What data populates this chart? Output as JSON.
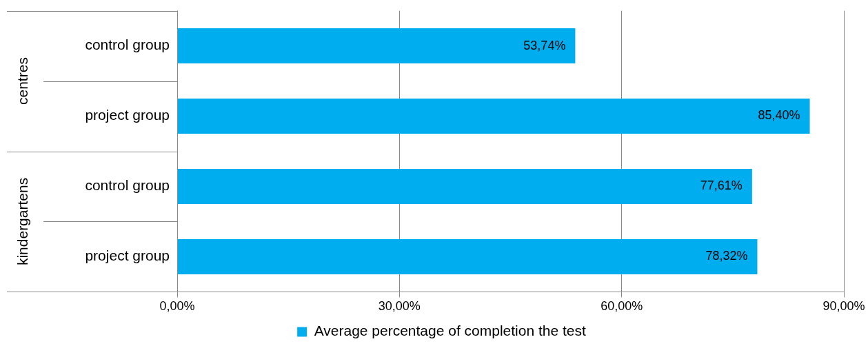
{
  "chart_data": {
    "type": "bar",
    "orientation": "horizontal",
    "categories": [
      "control group",
      "project group",
      "control group",
      "project group"
    ],
    "series": [
      {
        "name": "Average percentage of completion the test",
        "color": "#00aeef",
        "values": [
          53.74,
          85.4,
          77.61,
          78.32
        ],
        "value_labels": [
          "53,74%",
          "85,40%",
          "77,61%",
          "78,32%"
        ]
      }
    ],
    "xlim": [
      0,
      90
    ],
    "xticks": [
      {
        "value": 0,
        "label": "0,00%"
      },
      {
        "value": 30,
        "label": "30,00%"
      },
      {
        "value": 60,
        "label": "60,00%"
      },
      {
        "value": 90,
        "label": "90,00%"
      }
    ],
    "annotations": [
      "centres",
      "kindergartens"
    ],
    "grid": "x",
    "legend": "bottom"
  }
}
